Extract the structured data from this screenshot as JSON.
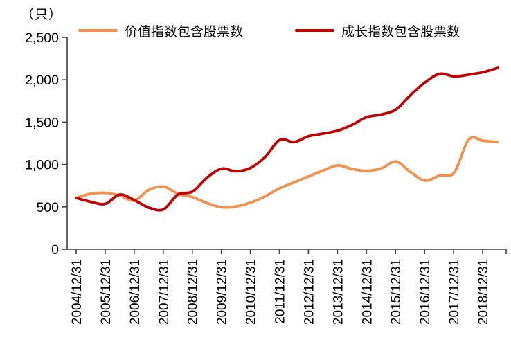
{
  "chart_data": {
    "type": "line",
    "title": "",
    "unit_label": "（只）",
    "xlabel": "",
    "ylabel": "",
    "ylim": [
      0,
      2500
    ],
    "grid": false,
    "legend_position": "top",
    "axis_color": "#404040",
    "text_color": "#000000",
    "y_ticks": [
      0,
      500,
      1000,
      1500,
      2000,
      2500
    ],
    "y_tick_labels": [
      "0",
      "500",
      "1,000",
      "1,500",
      "2,000",
      "2,500"
    ],
    "x_tick_labels": [
      "2004/12/31",
      "2005/12/31",
      "2006/12/31",
      "2007/12/31",
      "2008/12/31",
      "2009/12/31",
      "2010/12/31",
      "2011/12/31",
      "2012/12/31",
      "2013/12/31",
      "2014/12/31",
      "2015/12/31",
      "2016/12/31",
      "2017/12/31",
      "2018/12/31"
    ],
    "x_points": [
      "2004/12",
      "2005/06",
      "2005/12",
      "2006/06",
      "2006/12",
      "2007/06",
      "2007/12",
      "2008/06",
      "2008/12",
      "2009/06",
      "2009/12",
      "2010/06",
      "2010/12",
      "2011/06",
      "2011/12",
      "2012/06",
      "2012/12",
      "2013/06",
      "2013/12",
      "2014/06",
      "2014/12",
      "2015/06",
      "2015/12",
      "2016/06",
      "2016/12",
      "2017/06",
      "2017/12",
      "2018/06",
      "2018/12",
      "2019/06"
    ],
    "series": [
      {
        "name": "价值指数包含股票数",
        "color": "#F2904E",
        "values": [
          605,
          655,
          665,
          635,
          575,
          700,
          740,
          655,
          615,
          545,
          495,
          505,
          550,
          625,
          720,
          790,
          860,
          930,
          990,
          945,
          925,
          955,
          1035,
          910,
          810,
          870,
          905,
          1295,
          1280,
          1265
        ]
      },
      {
        "name": "成长指数包含股票数",
        "color": "#C00000",
        "values": [
          605,
          560,
          535,
          645,
          580,
          490,
          470,
          645,
          680,
          845,
          950,
          920,
          960,
          1090,
          1290,
          1265,
          1335,
          1365,
          1400,
          1470,
          1560,
          1590,
          1650,
          1820,
          1970,
          2070,
          2040,
          2060,
          2090,
          2140
        ]
      }
    ]
  }
}
